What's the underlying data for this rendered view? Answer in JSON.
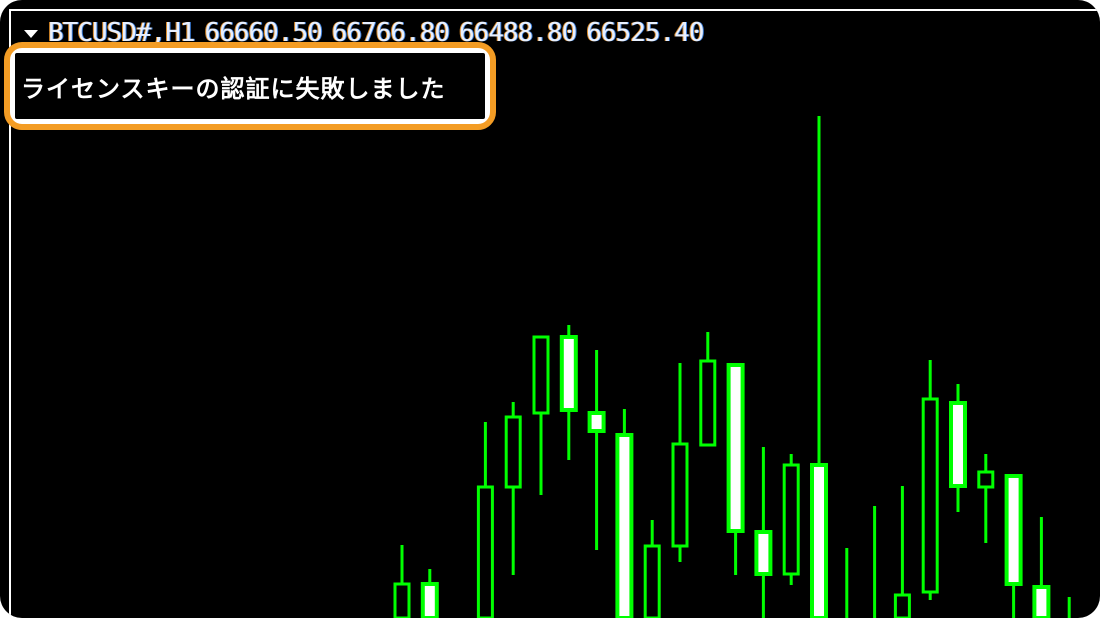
{
  "chart_header": {
    "symbol": "BTCUSD#,H1",
    "open": "66660.50",
    "high": "66766.80",
    "low": "66488.80",
    "close": "66525.40"
  },
  "callout": {
    "message": "ライセンスキーの認証に失敗しました",
    "border_color": "#f39c24"
  },
  "colors": {
    "background": "#000000",
    "candle_outline": "#00ff00",
    "bear_fill": "#ffffff",
    "bull_fill": "#000000"
  },
  "chart_data": {
    "type": "candlestick",
    "note_units": "relative price level",
    "candles": [
      {
        "o": 0,
        "h": 73,
        "l": -20,
        "c": 34,
        "filled": false
      },
      {
        "o": 34,
        "h": 49,
        "l": -20,
        "c": 0,
        "filled": true
      },
      {
        "o": 0,
        "h": 196,
        "l": -20,
        "c": 131,
        "filled": false
      },
      {
        "o": 131,
        "h": 216,
        "l": 43,
        "c": 201,
        "filled": false
      },
      {
        "o": 205,
        "h": 281,
        "l": 123,
        "c": 281,
        "filled": false
      },
      {
        "o": 281,
        "h": 293,
        "l": 158,
        "c": 208,
        "filled": true
      },
      {
        "o": 205,
        "h": 268,
        "l": 68,
        "c": 187,
        "filled": true
      },
      {
        "o": 183,
        "h": 209,
        "l": -20,
        "c": 0,
        "filled": true
      },
      {
        "o": 0,
        "h": 98,
        "l": -20,
        "c": 72,
        "filled": false
      },
      {
        "o": 72,
        "h": 255,
        "l": 56,
        "c": 174,
        "filled": false
      },
      {
        "o": 173,
        "h": 286,
        "l": 173,
        "c": 257,
        "filled": false
      },
      {
        "o": 253,
        "h": 253,
        "l": 43,
        "c": 87,
        "filled": true
      },
      {
        "o": 86,
        "h": 171,
        "l": 0,
        "c": 44,
        "filled": true
      },
      {
        "o": 44,
        "h": 164,
        "l": 33,
        "c": 153,
        "filled": false
      },
      {
        "o": 153,
        "h": 502,
        "l": -20,
        "c": 0,
        "filled": true
      },
      {
        "o": -20,
        "h": 70,
        "l": -20,
        "c": -20,
        "filled": false
      },
      {
        "o": -20,
        "h": 112,
        "l": -20,
        "c": -20,
        "filled": false
      },
      {
        "o": 0,
        "h": 132,
        "l": -20,
        "c": 23,
        "filled": false
      },
      {
        "o": 26,
        "h": 258,
        "l": 18,
        "c": 219,
        "filled": false
      },
      {
        "o": 215,
        "h": 234,
        "l": 106,
        "c": 132,
        "filled": true
      },
      {
        "o": 131,
        "h": 164,
        "l": 75,
        "c": 146,
        "filled": false
      },
      {
        "o": 142,
        "h": 142,
        "l": -20,
        "c": 34,
        "filled": true
      },
      {
        "o": 31,
        "h": 101,
        "l": -20,
        "c": 0,
        "filled": true
      },
      {
        "o": -20,
        "h": 21,
        "l": -20,
        "c": -20,
        "filled": false
      }
    ]
  }
}
